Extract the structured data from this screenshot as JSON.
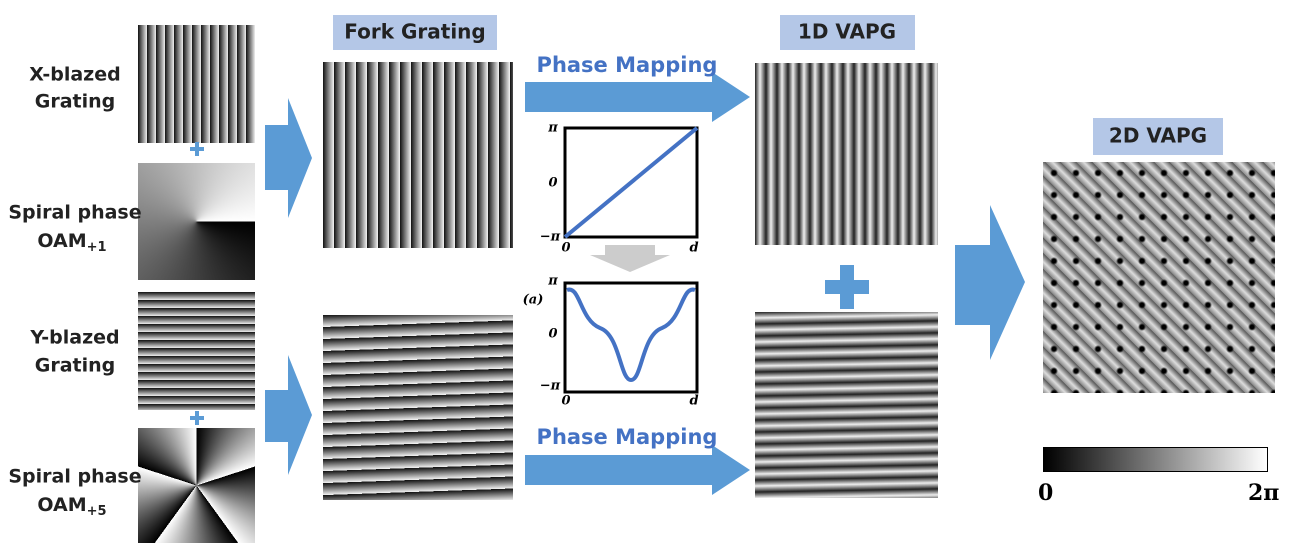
{
  "inputs": [
    {
      "line1": "X-blazed",
      "line2": "Grating"
    },
    {
      "line1": "Spiral phase",
      "line2": "OAM",
      "sub": "+1"
    },
    {
      "line1": "Y-blazed",
      "line2": "Grating"
    },
    {
      "line1": "Spiral phase",
      "line2": "OAM",
      "sub": "+5"
    }
  ],
  "headers": {
    "fork": "Fork Grating",
    "vapg1d": "1D VAPG",
    "vapg2d": "2D VAPG"
  },
  "mapping": [
    "Phase Mapping",
    "Phase Mapping"
  ],
  "plots": [
    {
      "yticks": [
        "π",
        "0",
        "−π"
      ],
      "xticks": [
        "0",
        "d"
      ]
    },
    {
      "tag": "(a)",
      "yticks": [
        "π",
        "0",
        "−π"
      ],
      "xticks": [
        "0",
        "d"
      ]
    }
  ],
  "colorbar": [
    "0",
    "2π"
  ]
}
